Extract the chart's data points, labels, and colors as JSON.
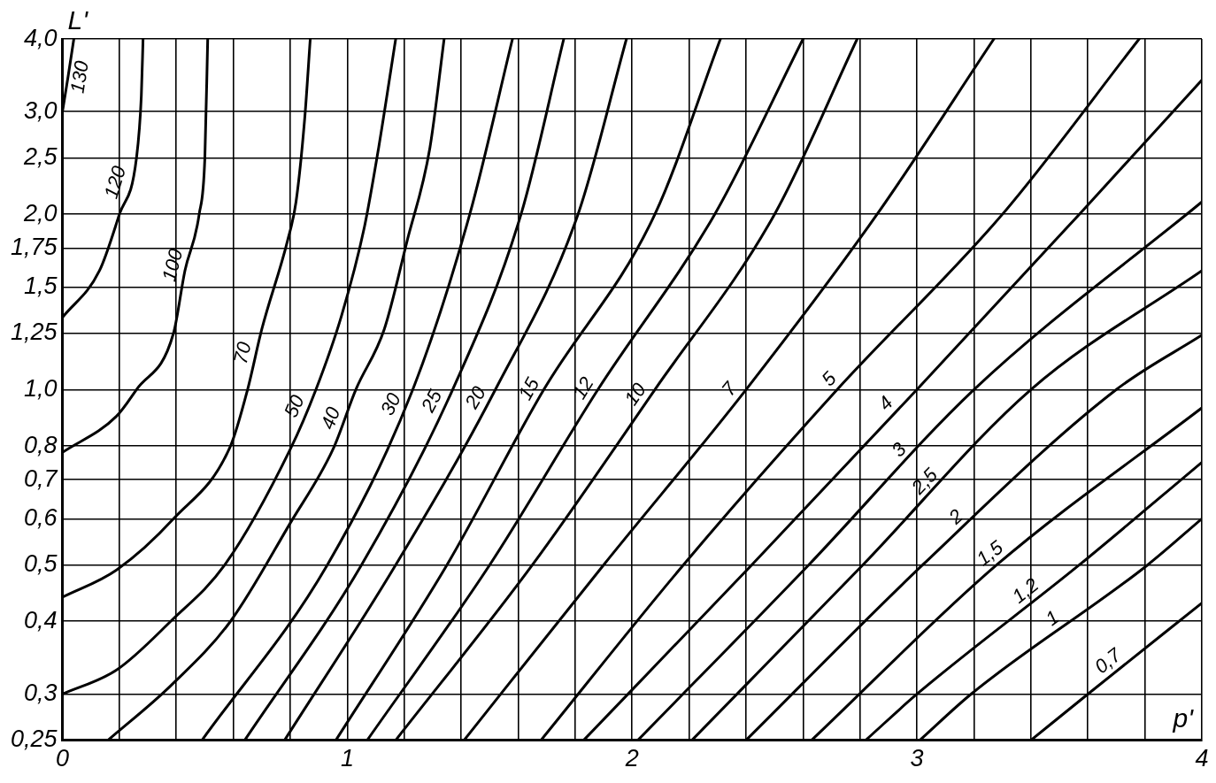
{
  "chart_data": {
    "type": "line",
    "xlabel": "p'",
    "ylabel": "L'",
    "log": "y",
    "grid": true,
    "xlim": [
      0,
      4
    ],
    "ylim": [
      0.25,
      4
    ],
    "xticks": [
      0,
      {
        "value": 0.2,
        "label": null
      },
      {
        "value": 0.4,
        "label": null
      },
      {
        "value": 0.6,
        "label": null
      },
      {
        "value": 0.8,
        "label": null
      },
      1,
      {
        "value": 1.2,
        "label": null
      },
      {
        "value": 1.4,
        "label": null
      },
      {
        "value": 1.6,
        "label": null
      },
      {
        "value": 1.8,
        "label": null
      },
      2,
      {
        "value": 2.2,
        "label": null
      },
      {
        "value": 2.4,
        "label": null
      },
      {
        "value": 2.6,
        "label": null
      },
      {
        "value": 2.8,
        "label": null
      },
      3,
      {
        "value": 3.2,
        "label": null
      },
      {
        "value": 3.4,
        "label": null
      },
      {
        "value": 3.6,
        "label": null
      },
      {
        "value": 3.8,
        "label": null
      },
      4
    ],
    "yticks": [
      {
        "value": 0.25,
        "label": "0,25"
      },
      {
        "value": 0.3,
        "label": "0,3"
      },
      {
        "value": 0.4,
        "label": "0,4"
      },
      {
        "value": 0.5,
        "label": "0,5"
      },
      {
        "value": 0.6,
        "label": "0,6"
      },
      {
        "value": 0.7,
        "label": "0,7"
      },
      {
        "value": 0.8,
        "label": "0,8"
      },
      {
        "value": 1,
        "label": "1,0"
      },
      {
        "value": 1.25,
        "label": "1,25"
      },
      {
        "value": 1.5,
        "label": "1,5"
      },
      {
        "value": 1.75,
        "label": "1,75"
      },
      {
        "value": 2,
        "label": "2,0"
      },
      {
        "value": 2.5,
        "label": "2,5"
      },
      {
        "value": 3,
        "label": "3,0"
      },
      {
        "value": 4,
        "label": "4,0"
      }
    ],
    "series": [
      {
        "name": "130",
        "color": "#000000",
        "x": [
          0,
          0.02,
          0.04
        ],
        "values": [
          3.0,
          3.45,
          4.0
        ]
      },
      {
        "name": "120",
        "color": "#000000",
        "x": [
          0,
          0.13,
          0.2,
          0.26,
          0.277,
          0.283
        ],
        "values": [
          1.33,
          1.6,
          2.0,
          2.5,
          3.2,
          4.0
        ]
      },
      {
        "name": "100",
        "color": "#000000",
        "x": [
          0,
          0.19,
          0.26,
          0.39,
          0.43,
          0.48,
          0.5,
          0.51
        ],
        "values": [
          0.78,
          0.9,
          1.0,
          1.25,
          1.6,
          2.0,
          2.5,
          4.0
        ]
      },
      {
        "name": "70",
        "color": "#000000",
        "x": [
          0,
          0.19,
          0.39,
          0.59,
          0.65,
          0.7,
          0.79,
          0.82,
          0.85,
          0.87
        ],
        "values": [
          0.44,
          0.49,
          0.6,
          0.8,
          1.0,
          1.27,
          1.8,
          2.1,
          2.9,
          4.0
        ]
      },
      {
        "name": "50",
        "color": "#000000",
        "x": [
          0,
          0.19,
          0.38,
          0.57,
          0.8,
          0.89,
          0.98,
          1.06,
          1.11,
          1.17
        ],
        "values": [
          0.3,
          0.33,
          0.4,
          0.5,
          0.79,
          1.0,
          1.34,
          1.9,
          2.6,
          4.0
        ]
      },
      {
        "name": "40",
        "color": "#000000",
        "x": [
          0.16,
          0.38,
          0.59,
          0.8,
          0.95,
          1.03,
          1.13,
          1.21,
          1.29,
          1.34
        ],
        "values": [
          0.25,
          0.31,
          0.4,
          0.59,
          0.79,
          1.0,
          1.27,
          1.8,
          2.6,
          4.0
        ]
      },
      {
        "name": "30",
        "color": "#000000",
        "x": [
          0.49,
          0.93,
          1.23,
          1.43,
          1.58
        ],
        "values": [
          0.25,
          0.5,
          1.0,
          2.0,
          4.0
        ]
      },
      {
        "name": "25",
        "color": "#000000",
        "x": [
          0.64,
          1.05,
          1.37,
          1.61,
          1.76
        ],
        "values": [
          0.25,
          0.5,
          1.0,
          2.0,
          4.0
        ]
      },
      {
        "name": "20",
        "color": "#000000",
        "x": [
          0.78,
          1.17,
          1.52,
          1.81,
          1.98
        ],
        "values": [
          0.25,
          0.5,
          1.0,
          2.0,
          4.0
        ]
      },
      {
        "name": "15",
        "color": "#000000",
        "x": [
          0.96,
          1.35,
          1.69,
          2.08,
          2.31
        ],
        "values": [
          0.25,
          0.5,
          1.0,
          2.0,
          4.0
        ]
      },
      {
        "name": "12",
        "color": "#000000",
        "x": [
          1.07,
          1.5,
          1.88,
          2.29,
          2.6
        ],
        "values": [
          0.25,
          0.5,
          1.0,
          2.0,
          4.0
        ]
      },
      {
        "name": "10",
        "color": "#000000",
        "x": [
          1.17,
          1.65,
          2.08,
          2.5,
          2.79
        ],
        "values": [
          0.25,
          0.5,
          1.0,
          2.0,
          4.0
        ]
      },
      {
        "name": "7",
        "color": "#000000",
        "x": [
          1.41,
          1.9,
          2.4,
          2.86,
          3.27
        ],
        "values": [
          0.25,
          0.5,
          1.0,
          2.0,
          4.0
        ]
      },
      {
        "name": "5",
        "color": "#000000",
        "x": [
          1.68,
          2.18,
          2.72,
          3.3,
          3.78
        ],
        "values": [
          0.25,
          0.5,
          1.0,
          2.0,
          4.0
        ]
      },
      {
        "name": "4",
        "color": "#000000",
        "x": [
          1.83,
          2.42,
          3.0,
          3.57,
          4.0
        ],
        "values": [
          0.25,
          0.5,
          1.0,
          2.0,
          3.4
        ]
      },
      {
        "name": "3",
        "color": "#000000",
        "x": [
          2.02,
          2.62,
          3.2,
          4.0
        ],
        "values": [
          0.25,
          0.5,
          1.0,
          2.1
        ]
      },
      {
        "name": "2,5",
        "color": "#000000",
        "x": [
          2.21,
          2.81,
          3.4,
          4.0
        ],
        "values": [
          0.25,
          0.5,
          1.0,
          1.6
        ]
      },
      {
        "name": "2",
        "color": "#000000",
        "x": [
          2.4,
          3.02,
          3.7,
          4.0
        ],
        "values": [
          0.25,
          0.5,
          1.0,
          1.24
        ]
      },
      {
        "name": "1,5",
        "color": "#000000",
        "x": [
          2.63,
          3.28,
          4.0
        ],
        "values": [
          0.25,
          0.5,
          0.93
        ]
      },
      {
        "name": "1,2",
        "color": "#000000",
        "x": [
          2.82,
          3.0,
          3.57,
          4.0
        ],
        "values": [
          0.25,
          0.3,
          0.5,
          0.75
        ]
      },
      {
        "name": "1",
        "color": "#000000",
        "x": [
          3.01,
          3.19,
          3.81,
          4.0
        ],
        "values": [
          0.25,
          0.3,
          0.5,
          0.6
        ]
      },
      {
        "name": "0,7",
        "color": "#000000",
        "x": [
          3.4,
          3.6,
          4.0
        ],
        "values": [
          0.25,
          0.3,
          0.43
        ]
      }
    ]
  }
}
